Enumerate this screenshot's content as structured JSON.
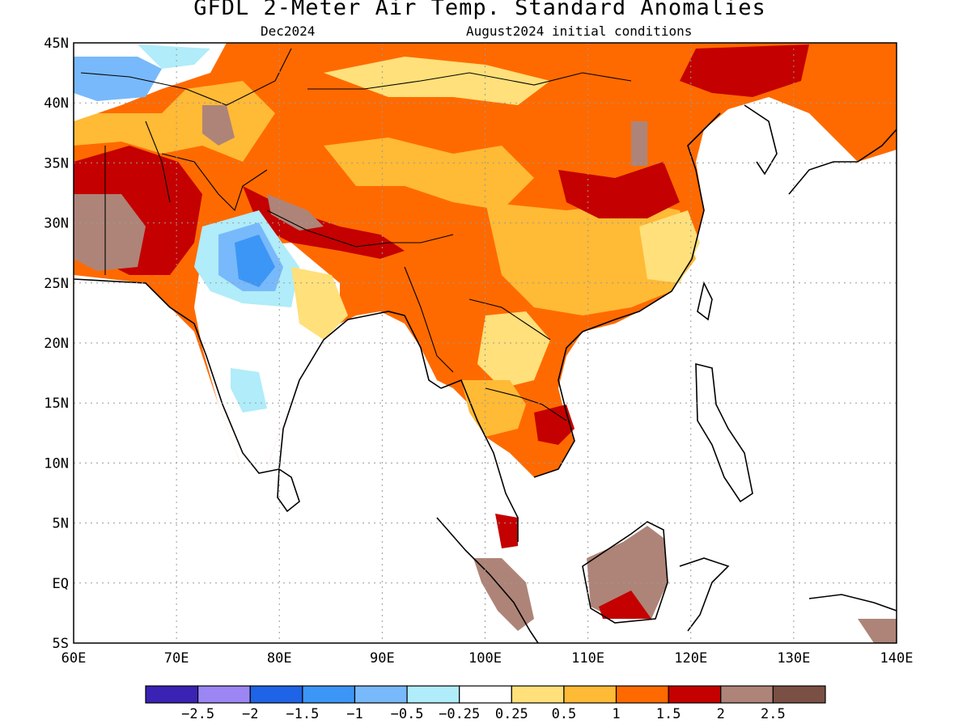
{
  "title": "GFDL 2-Meter Air Temp. Standard Anomalies",
  "target_month": "Dec2024",
  "initial_conditions": "August2024 initial conditions",
  "map": {
    "lon_range": [
      60,
      140
    ],
    "lat_range": [
      -5,
      45
    ],
    "lon_ticks": [
      "60E",
      "70E",
      "80E",
      "90E",
      "100E",
      "110E",
      "120E",
      "130E",
      "140E"
    ],
    "lat_ticks": [
      "5S",
      "EQ",
      "5N",
      "10N",
      "15N",
      "20N",
      "25N",
      "30N",
      "35N",
      "40N",
      "45N"
    ],
    "gridlines": true,
    "coastlines": true,
    "ocean_masked": true
  },
  "colorbar": {
    "colors": [
      "#3a22b4",
      "#9c86f4",
      "#1f64e6",
      "#3c96f5",
      "#78b9fb",
      "#b0ecf9",
      "#ffffff",
      "#ffe07a",
      "#ffba36",
      "#ff6a00",
      "#c40000",
      "#ae8478",
      "#7a5044"
    ],
    "labels": [
      "-2.5",
      "-2",
      "-1.5",
      "-1",
      "-0.5",
      "-0.25",
      "0.25",
      "0.5",
      "1",
      "1.5",
      "2",
      "2.5"
    ]
  }
}
